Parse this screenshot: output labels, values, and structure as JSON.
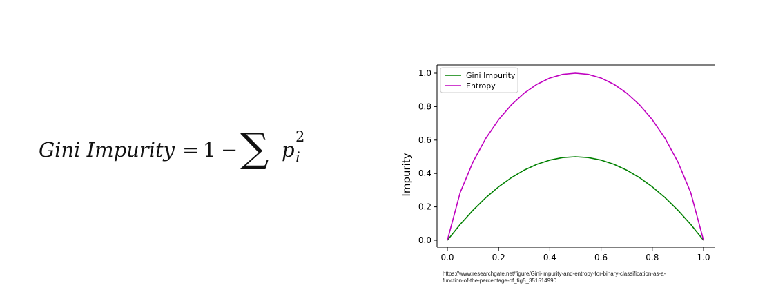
{
  "formula": {
    "lhs": "Gini Impurity",
    "equals": "=",
    "one": "1",
    "minus": "−",
    "sum": "∑",
    "term": "p",
    "subscript": "i",
    "superscript": "2"
  },
  "chart_data": {
    "type": "line",
    "ylabel": "Impurity",
    "xlim": [
      0.0,
      1.0
    ],
    "ylim": [
      0.0,
      1.0
    ],
    "xticks": [
      "0.0",
      "0.2",
      "0.4",
      "0.6",
      "0.8",
      "1.0"
    ],
    "yticks": [
      "0.0",
      "0.2",
      "0.4",
      "0.6",
      "0.8",
      "1.0"
    ],
    "legend_position": "top-left",
    "x": [
      0.0,
      0.05,
      0.1,
      0.15,
      0.2,
      0.25,
      0.3,
      0.35,
      0.4,
      0.45,
      0.5,
      0.55,
      0.6,
      0.65,
      0.7,
      0.75,
      0.8,
      0.85,
      0.9,
      0.95,
      1.0
    ],
    "series": [
      {
        "name": "Gini Impurity",
        "color": "#008000",
        "values": [
          0.0,
          0.095,
          0.18,
          0.255,
          0.32,
          0.375,
          0.42,
          0.455,
          0.48,
          0.495,
          0.5,
          0.495,
          0.48,
          0.455,
          0.42,
          0.375,
          0.32,
          0.255,
          0.18,
          0.095,
          0.0
        ]
      },
      {
        "name": "Entropy",
        "color": "#bf00bf",
        "values": [
          0.0,
          0.286,
          0.469,
          0.61,
          0.722,
          0.811,
          0.881,
          0.934,
          0.971,
          0.993,
          1.0,
          0.993,
          0.971,
          0.934,
          0.881,
          0.811,
          0.722,
          0.61,
          0.469,
          0.286,
          0.0
        ]
      }
    ]
  },
  "source": {
    "line1": "https://www.researchgate.net/figure/Gini-impurity-and-entropy-for-binary-classification-as-a-",
    "line2": "function-of-the-percentage-of_fig5_351514990"
  }
}
